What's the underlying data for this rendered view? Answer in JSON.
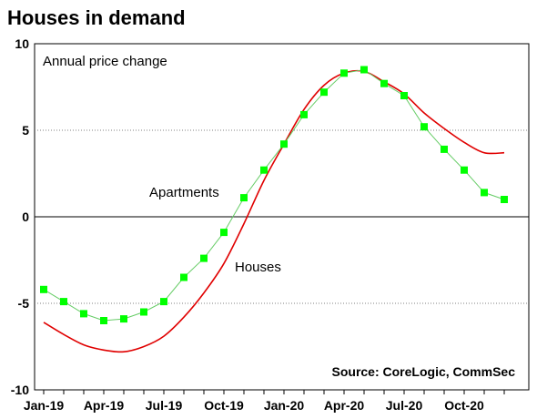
{
  "chart_data": {
    "type": "line",
    "title": "Houses in demand",
    "subtitle": "Annual price change",
    "source": "Source: CoreLogic, CommSec",
    "ylim": [
      -10,
      10
    ],
    "yticks": [
      10,
      5,
      0,
      -5,
      -10
    ],
    "xtick_labels": [
      "Jan-19",
      "Apr-19",
      "Jul-19",
      "Oct-19",
      "Jan-20",
      "Apr-20",
      "Jul-20",
      "Oct-20"
    ],
    "xtick_positions": [
      0,
      3,
      6,
      9,
      12,
      15,
      18,
      21
    ],
    "grid": "dotted horizontal at ±5",
    "x_months": [
      "Jan-19",
      "Feb-19",
      "Mar-19",
      "Apr-19",
      "May-19",
      "Jun-19",
      "Jul-19",
      "Aug-19",
      "Sep-19",
      "Oct-19",
      "Nov-19",
      "Dec-19",
      "Jan-20",
      "Feb-20",
      "Mar-20",
      "Apr-20",
      "May-20",
      "Jun-20",
      "Jul-20",
      "Aug-20",
      "Sep-20",
      "Oct-20",
      "Nov-20",
      "Dec-20"
    ],
    "series": [
      {
        "name": "Apartments",
        "color": "#00ff00",
        "line_color": "#66cc66",
        "marker": "square",
        "values": [
          -4.2,
          -4.9,
          -5.6,
          -6.0,
          -5.9,
          -5.5,
          -4.9,
          -3.5,
          -2.4,
          -0.9,
          1.1,
          2.7,
          4.2,
          5.9,
          7.2,
          8.3,
          8.5,
          7.7,
          7.0,
          5.2,
          3.9,
          2.7,
          1.4,
          1.0
        ]
      },
      {
        "name": "Houses",
        "color": "#e00000",
        "marker": "none",
        "values": [
          -6.1,
          -6.8,
          -7.4,
          -7.7,
          -7.8,
          -7.5,
          -6.9,
          -5.8,
          -4.4,
          -2.7,
          -0.4,
          2.1,
          4.2,
          6.2,
          7.6,
          8.3,
          8.4,
          7.8,
          7.1,
          6.0,
          5.1,
          4.3,
          3.7,
          3.7
        ]
      }
    ]
  },
  "colors": {
    "apartments_marker": "#00ff00",
    "apartments_line": "#66cc66",
    "houses_line": "#e00000",
    "axis": "#000000",
    "grid": "#808080"
  }
}
